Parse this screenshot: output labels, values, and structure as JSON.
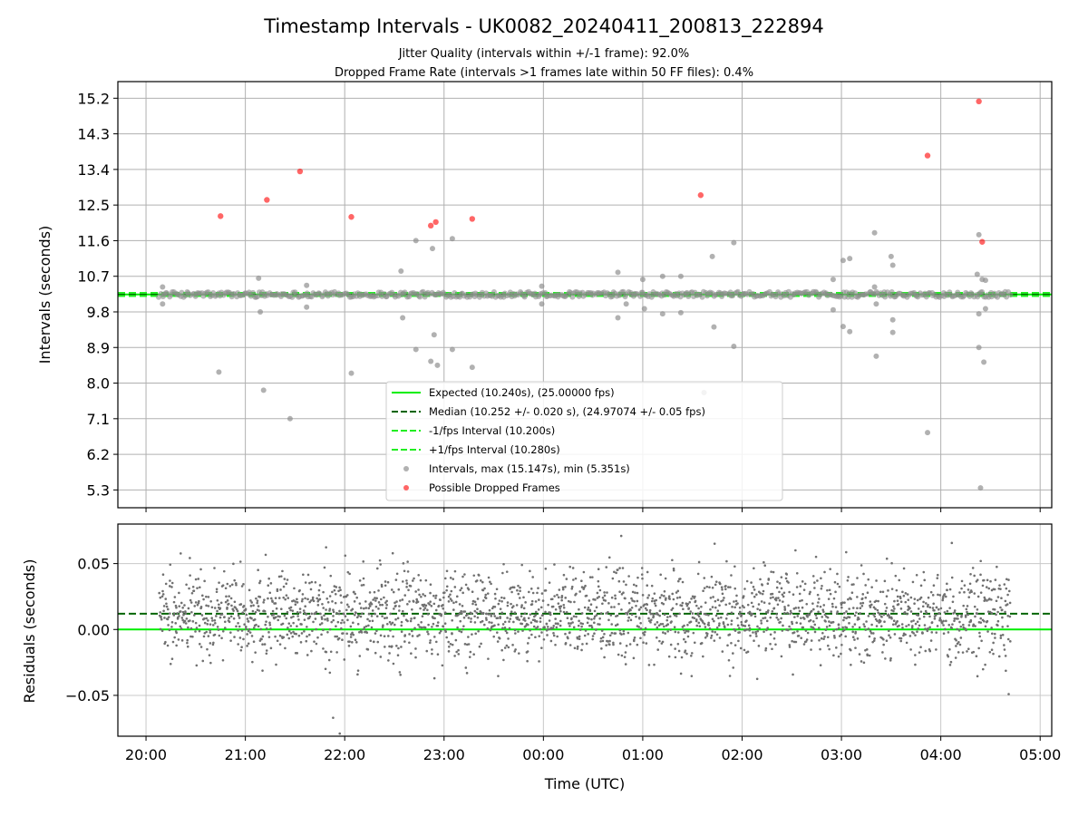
{
  "chart_data": [
    {
      "type": "scatter",
      "title": "Timestamp Intervals - UK0082_20240411_200813_222894",
      "subtitle_lines": [
        "Jitter Quality (intervals within +/-1 frame): 92.0%",
        "Dropped Frame Rate (intervals >1 frames late within 50 FF files): 0.4%"
      ],
      "ylabel": "Intervals (seconds)",
      "ylim": [
        4.85,
        15.62
      ],
      "yticks": [
        5.3,
        6.2,
        7.1,
        8.0,
        8.9,
        9.8,
        10.7,
        11.6,
        12.5,
        13.4,
        14.3,
        15.2
      ],
      "ytick_labels": [
        "5.3",
        "6.2",
        "7.1",
        "8.0",
        "8.9",
        "9.8",
        "10.7",
        "11.6",
        "12.5",
        "13.4",
        "14.3",
        "15.2"
      ],
      "xlim": [
        "2024-04-11T19:43",
        "2024-04-12T05:07"
      ],
      "grid": true,
      "legend_position": "lower-center",
      "reference_lines": [
        {
          "name": "Expected (10.240s), (25.00000 fps)",
          "y": 10.24,
          "style": "solid",
          "color": "#00ee00"
        },
        {
          "name": "Median (10.252 +/- 0.020 s), (24.97074 +/- 0.05 fps)",
          "y": 10.252,
          "style": "dashed",
          "color": "#006400"
        },
        {
          "name": "-1/fps Interval (10.200s)",
          "y": 10.2,
          "style": "dashed",
          "color": "#22ee22"
        },
        {
          "name": "+1/fps Interval (10.280s)",
          "y": 10.28,
          "style": "dashed",
          "color": "#22ee22"
        }
      ],
      "series": [
        {
          "name": "Intervals, max (15.147s), min (5.351s)",
          "color": "#909090",
          "start": "2024-04-11T20:08",
          "end": "2024-04-12T04:42",
          "typical": 10.24,
          "outliers": [
            {
              "t": "2024-04-11T20:10",
              "y": 10.0
            },
            {
              "t": "2024-04-11T20:10",
              "y": 10.43
            },
            {
              "t": "2024-04-11T20:44",
              "y": 8.28
            },
            {
              "t": "2024-04-11T21:08",
              "y": 10.65
            },
            {
              "t": "2024-04-11T21:09",
              "y": 9.8
            },
            {
              "t": "2024-04-11T21:11",
              "y": 7.82
            },
            {
              "t": "2024-04-11T21:27",
              "y": 7.1
            },
            {
              "t": "2024-04-11T21:37",
              "y": 10.47
            },
            {
              "t": "2024-04-11T21:37",
              "y": 9.92
            },
            {
              "t": "2024-04-11T22:04",
              "y": 8.25
            },
            {
              "t": "2024-04-11T22:34",
              "y": 10.83
            },
            {
              "t": "2024-04-11T22:35",
              "y": 9.65
            },
            {
              "t": "2024-04-11T22:43",
              "y": 11.6
            },
            {
              "t": "2024-04-11T22:43",
              "y": 8.85
            },
            {
              "t": "2024-04-11T22:53",
              "y": 11.4
            },
            {
              "t": "2024-04-11T22:54",
              "y": 9.22
            },
            {
              "t": "2024-04-11T22:52",
              "y": 8.55
            },
            {
              "t": "2024-04-11T22:56",
              "y": 8.45
            },
            {
              "t": "2024-04-11T23:05",
              "y": 11.65
            },
            {
              "t": "2024-04-11T23:05",
              "y": 8.85
            },
            {
              "t": "2024-04-11T23:17",
              "y": 8.4
            },
            {
              "t": "2024-04-11T23:59",
              "y": 10.45
            },
            {
              "t": "2024-04-11T23:59",
              "y": 10.0
            },
            {
              "t": "2024-04-12T00:45",
              "y": 10.8
            },
            {
              "t": "2024-04-12T00:45",
              "y": 9.65
            },
            {
              "t": "2024-04-12T00:50",
              "y": 10.0
            },
            {
              "t": "2024-04-12T01:00",
              "y": 10.62
            },
            {
              "t": "2024-04-12T01:01",
              "y": 9.88
            },
            {
              "t": "2024-04-12T01:12",
              "y": 10.7
            },
            {
              "t": "2024-04-12T01:12",
              "y": 9.75
            },
            {
              "t": "2024-04-12T01:23",
              "y": 10.7
            },
            {
              "t": "2024-04-12T01:23",
              "y": 9.78
            },
            {
              "t": "2024-04-12T01:37",
              "y": 7.76
            },
            {
              "t": "2024-04-12T01:42",
              "y": 11.2
            },
            {
              "t": "2024-04-12T01:43",
              "y": 9.42
            },
            {
              "t": "2024-04-12T01:55",
              "y": 11.55
            },
            {
              "t": "2024-04-12T01:55",
              "y": 8.93
            },
            {
              "t": "2024-04-12T02:55",
              "y": 10.62
            },
            {
              "t": "2024-04-12T02:55",
              "y": 9.85
            },
            {
              "t": "2024-04-12T03:01",
              "y": 11.1
            },
            {
              "t": "2024-04-12T03:01",
              "y": 9.43
            },
            {
              "t": "2024-04-12T03:05",
              "y": 11.15
            },
            {
              "t": "2024-04-12T03:05",
              "y": 9.3
            },
            {
              "t": "2024-04-12T03:20",
              "y": 11.8
            },
            {
              "t": "2024-04-12T03:20",
              "y": 10.43
            },
            {
              "t": "2024-04-12T03:21",
              "y": 10.0
            },
            {
              "t": "2024-04-12T03:21",
              "y": 8.68
            },
            {
              "t": "2024-04-12T03:30",
              "y": 11.2
            },
            {
              "t": "2024-04-12T03:31",
              "y": 10.98
            },
            {
              "t": "2024-04-12T03:31",
              "y": 9.6
            },
            {
              "t": "2024-04-12T03:31",
              "y": 9.28
            },
            {
              "t": "2024-04-12T03:52",
              "y": 6.75
            },
            {
              "t": "2024-04-12T04:22",
              "y": 10.75
            },
            {
              "t": "2024-04-12T04:23",
              "y": 11.75
            },
            {
              "t": "2024-04-12T04:23",
              "y": 9.75
            },
            {
              "t": "2024-04-12T04:23",
              "y": 8.9
            },
            {
              "t": "2024-04-12T04:24",
              "y": 5.35
            },
            {
              "t": "2024-04-12T04:25",
              "y": 10.62
            },
            {
              "t": "2024-04-12T04:26",
              "y": 8.53
            },
            {
              "t": "2024-04-12T04:27",
              "y": 10.6
            },
            {
              "t": "2024-04-12T04:27",
              "y": 9.88
            }
          ]
        },
        {
          "name": "Possible Dropped Frames",
          "color": "#ff0000",
          "points": [
            {
              "t": "2024-04-11T20:45",
              "y": 12.22
            },
            {
              "t": "2024-04-11T21:13",
              "y": 12.63
            },
            {
              "t": "2024-04-11T21:33",
              "y": 13.35
            },
            {
              "t": "2024-04-11T22:04",
              "y": 12.2
            },
            {
              "t": "2024-04-11T22:52",
              "y": 11.98
            },
            {
              "t": "2024-04-11T22:55",
              "y": 12.07
            },
            {
              "t": "2024-04-11T23:17",
              "y": 12.15
            },
            {
              "t": "2024-04-12T01:35",
              "y": 12.75
            },
            {
              "t": "2024-04-12T03:52",
              "y": 13.75
            },
            {
              "t": "2024-04-12T04:23",
              "y": 15.12
            },
            {
              "t": "2024-04-12T04:25",
              "y": 11.57
            }
          ]
        }
      ]
    },
    {
      "type": "scatter",
      "ylabel": "Residuals (seconds)",
      "xlabel": "Time (UTC)",
      "ylim": [
        -0.081,
        0.08
      ],
      "yticks": [
        -0.05,
        0.0,
        0.05
      ],
      "ytick_labels": [
        "−0.05",
        "0.00",
        "0.05"
      ],
      "xlim": [
        "2024-04-11T19:43",
        "2024-04-12T05:07"
      ],
      "xticks": [
        "2024-04-11T20:00",
        "2024-04-11T21:00",
        "2024-04-11T22:00",
        "2024-04-11T23:00",
        "2024-04-12T00:00",
        "2024-04-12T01:00",
        "2024-04-12T02:00",
        "2024-04-12T03:00",
        "2024-04-12T04:00",
        "2024-04-12T05:00"
      ],
      "xtick_labels": [
        "20:00",
        "21:00",
        "22:00",
        "23:00",
        "00:00",
        "01:00",
        "02:00",
        "03:00",
        "04:00",
        "05:00"
      ],
      "grid": true,
      "reference_lines": [
        {
          "y": 0.0,
          "style": "solid",
          "color": "#00ee00"
        },
        {
          "y": 0.012,
          "style": "dashed",
          "color": "#006400"
        }
      ],
      "series": [
        {
          "color": "#707070",
          "start": "2024-04-11T20:08",
          "end": "2024-04-12T04:42",
          "count": 2400,
          "center": 0.012,
          "spread": 0.028,
          "extremes": [
            {
              "t": "2024-04-11T21:53",
              "y": -0.067
            },
            {
              "t": "2024-04-11T21:57",
              "y": -0.079
            },
            {
              "t": "2024-04-12T00:47",
              "y": 0.071
            },
            {
              "t": "2024-04-12T04:41",
              "y": -0.049
            }
          ]
        }
      ]
    }
  ]
}
